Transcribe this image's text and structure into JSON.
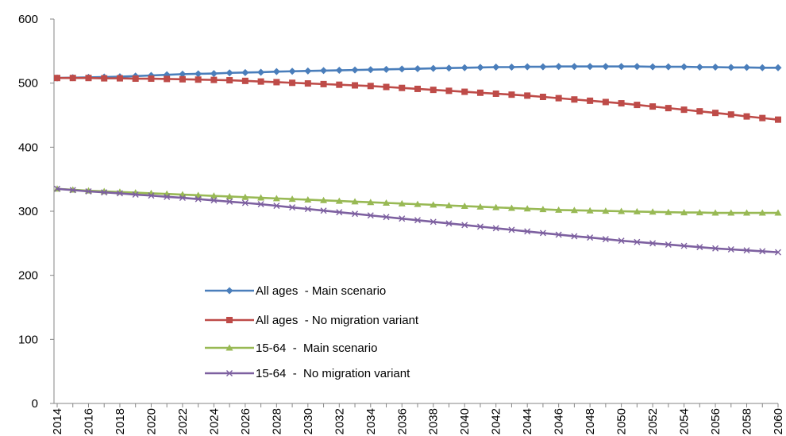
{
  "chart_data": {
    "type": "line",
    "title": "",
    "xlabel": "",
    "ylabel": "",
    "ylim": [
      0,
      600
    ],
    "yticks": [
      0,
      100,
      200,
      300,
      400,
      500,
      600
    ],
    "xlim": [
      2014,
      2060
    ],
    "xticks": [
      "2014",
      "2016",
      "2018",
      "2020",
      "2022",
      "2024",
      "2026",
      "2028",
      "2030",
      "2032",
      "2034",
      "2036",
      "2038",
      "2040",
      "2042",
      "2044",
      "2046",
      "2048",
      "2050",
      "2052",
      "2054",
      "2056",
      "2058",
      "2060"
    ],
    "grid": false,
    "legend_position": "center-left",
    "x": [
      2014,
      2015,
      2016,
      2017,
      2018,
      2019,
      2020,
      2021,
      2022,
      2023,
      2024,
      2025,
      2026,
      2027,
      2028,
      2029,
      2030,
      2031,
      2032,
      2033,
      2034,
      2035,
      2036,
      2037,
      2038,
      2039,
      2040,
      2041,
      2042,
      2043,
      2044,
      2045,
      2046,
      2047,
      2048,
      2049,
      2050,
      2051,
      2052,
      2053,
      2054,
      2055,
      2056,
      2057,
      2058,
      2059,
      2060
    ],
    "series": [
      {
        "name": "All ages  - Main scenario",
        "color": "#4a7ebb",
        "marker": "diamond",
        "values": [
          508,
          508.5,
          509,
          509.5,
          510,
          511,
          512,
          513,
          514,
          514.5,
          515,
          516,
          516.5,
          517,
          518,
          518.5,
          519,
          519.5,
          520,
          520.5,
          521,
          521.5,
          522,
          522.5,
          523,
          523.5,
          524,
          524.5,
          525,
          525,
          525.5,
          525.5,
          526,
          526,
          526,
          526,
          526,
          526,
          525.5,
          525.5,
          525.5,
          525,
          525,
          524.5,
          524.5,
          524,
          524
        ]
      },
      {
        "name": "All ages  - No migration variant",
        "color": "#be4b48",
        "marker": "square",
        "values": [
          508,
          508,
          508,
          507.5,
          507.5,
          507,
          507,
          506.5,
          506,
          505.5,
          505,
          504.5,
          503.5,
          502.5,
          501.5,
          500.5,
          499.5,
          498.5,
          497.5,
          496.5,
          495.5,
          494,
          492.5,
          491,
          489.5,
          488,
          486.5,
          485,
          483.5,
          482,
          480.5,
          478.5,
          476.5,
          474.5,
          472.5,
          470.5,
          468.5,
          466,
          463.5,
          461,
          458.5,
          456,
          453.5,
          451,
          448,
          445.5,
          443
        ]
      },
      {
        "name": "15-64  -  Main scenario",
        "color": "#98b954",
        "marker": "triangle",
        "values": [
          335,
          333.5,
          332,
          331,
          330,
          329,
          328,
          327,
          326,
          325,
          324,
          323,
          322,
          321,
          320,
          319,
          318,
          317,
          316,
          315,
          314,
          313,
          312,
          311,
          310,
          309,
          308,
          307,
          306,
          305,
          304,
          303,
          302,
          301.5,
          301,
          300.5,
          300,
          299.5,
          299,
          298.5,
          298,
          298,
          297.5,
          297.5,
          297.5,
          297.5,
          297.5
        ]
      },
      {
        "name": "15-64  -  No migration variant",
        "color": "#7d60a0",
        "marker": "x",
        "values": [
          335,
          333,
          331,
          329.5,
          328,
          326,
          324.5,
          322.5,
          321,
          319,
          317,
          315,
          313,
          311,
          308.5,
          306,
          303.5,
          301,
          298.5,
          296,
          293.5,
          291,
          288.5,
          286,
          283.5,
          281,
          278.5,
          276,
          273.5,
          271,
          268.5,
          266,
          263.5,
          261,
          259,
          256.5,
          254,
          252,
          250,
          248,
          246,
          244,
          242,
          240.5,
          239,
          237.5,
          236
        ]
      }
    ]
  }
}
